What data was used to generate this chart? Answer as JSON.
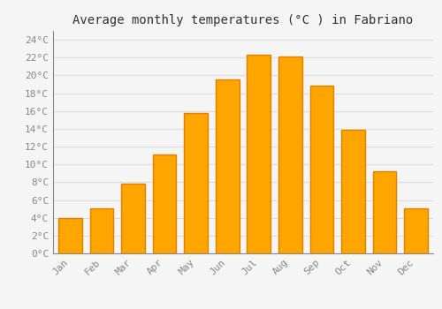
{
  "title": "Average monthly temperatures (°C ) in Fabriano",
  "months": [
    "Jan",
    "Feb",
    "Mar",
    "Apr",
    "May",
    "Jun",
    "Jul",
    "Aug",
    "Sep",
    "Oct",
    "Nov",
    "Dec"
  ],
  "temperatures": [
    4.0,
    5.1,
    7.8,
    11.1,
    15.8,
    19.5,
    22.3,
    22.1,
    18.8,
    13.9,
    9.2,
    5.1
  ],
  "bar_color": "#FFA500",
  "bar_edge_color": "#E08000",
  "background_color": "#F5F5F5",
  "plot_bg_color": "#F5F5F5",
  "grid_color": "#DDDDDD",
  "ylim": [
    0,
    25
  ],
  "ytick_step": 2,
  "title_fontsize": 10,
  "tick_fontsize": 8,
  "tick_color": "#888888",
  "title_color": "#333333"
}
